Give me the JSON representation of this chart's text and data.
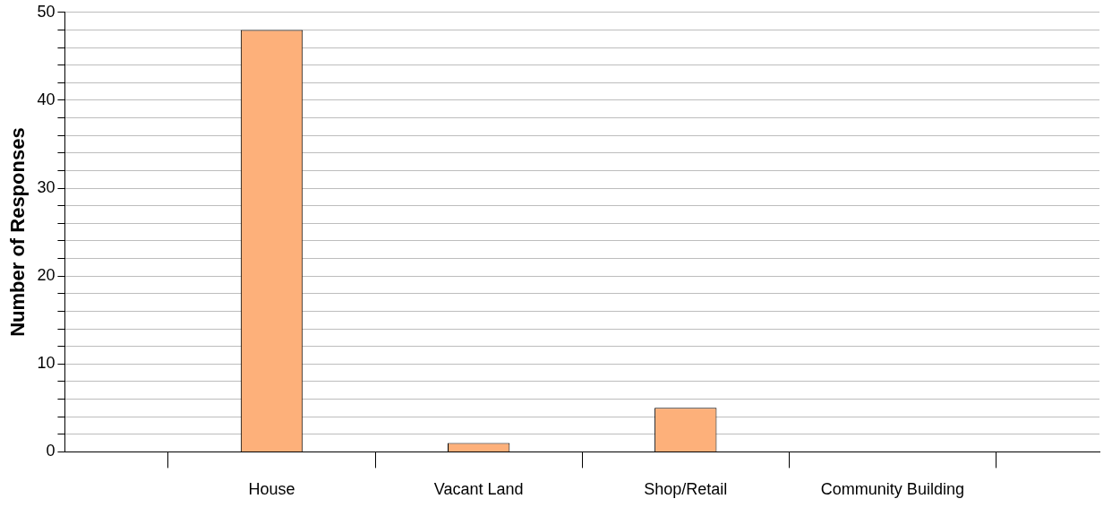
{
  "chart_data": {
    "type": "bar",
    "ylabel": "Number of Responses",
    "categories": [
      null,
      "House",
      "Vacant Land",
      "Shop/Retail",
      "Community Building",
      null
    ],
    "values": [
      null,
      48,
      1,
      5,
      0,
      null
    ],
    "color": "#fdb07a",
    "ylim": [
      0,
      50
    ],
    "yticks": [
      0,
      {
        "value": 2,
        "label": null
      },
      {
        "value": 4,
        "label": null
      },
      {
        "value": 6,
        "label": null
      },
      {
        "value": 8,
        "label": null
      },
      10,
      {
        "value": 12,
        "label": null
      },
      {
        "value": 14,
        "label": null
      },
      {
        "value": 16,
        "label": null
      },
      {
        "value": 18,
        "label": null
      },
      20,
      {
        "value": 22,
        "label": null
      },
      {
        "value": 24,
        "label": null
      },
      {
        "value": 26,
        "label": null
      },
      {
        "value": 28,
        "label": null
      },
      30,
      {
        "value": 32,
        "label": null
      },
      {
        "value": 34,
        "label": null
      },
      {
        "value": 36,
        "label": null
      },
      {
        "value": 38,
        "label": null
      },
      40,
      {
        "value": 42,
        "label": null
      },
      {
        "value": 44,
        "label": null
      },
      {
        "value": 46,
        "label": null
      },
      {
        "value": 48,
        "label": null
      },
      50
    ],
    "grid": "y",
    "legend": false
  }
}
